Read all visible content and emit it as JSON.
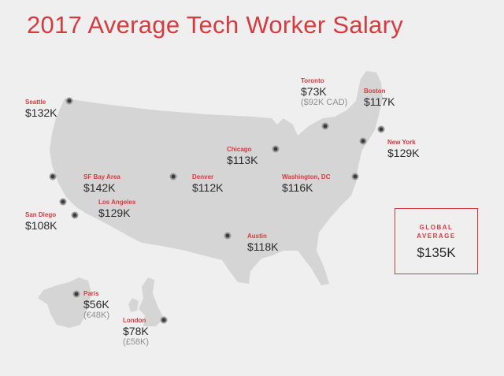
{
  "title": "2017 Average Tech Worker Salary",
  "colors": {
    "accent": "#d63b3f",
    "land": "#d5d5d5",
    "background": "#efefef"
  },
  "global": {
    "label": "GLOBAL AVERAGE",
    "value": "$135K"
  },
  "cities": [
    {
      "id": "seattle",
      "name": "Seattle",
      "salary": "$132K"
    },
    {
      "id": "sf-bay-area",
      "name": "SF Bay Area",
      "salary": "$142K"
    },
    {
      "id": "los-angeles",
      "name": "Los Angeles",
      "salary": "$129K"
    },
    {
      "id": "san-diego",
      "name": "San Diego",
      "salary": "$108K"
    },
    {
      "id": "denver",
      "name": "Denver",
      "salary": "$112K"
    },
    {
      "id": "chicago",
      "name": "Chicago",
      "salary": "$113K"
    },
    {
      "id": "toronto",
      "name": "Toronto",
      "salary": "$73K",
      "local": "($92K CAD)"
    },
    {
      "id": "boston",
      "name": "Boston",
      "salary": "$117K"
    },
    {
      "id": "new-york",
      "name": "New York",
      "salary": "$129K"
    },
    {
      "id": "washington-dc",
      "name": "Washington, DC",
      "salary": "$116K"
    },
    {
      "id": "austin",
      "name": "Austin",
      "salary": "$118K"
    },
    {
      "id": "paris",
      "name": "Paris",
      "salary": "$56K",
      "local": "(€48K)"
    },
    {
      "id": "london",
      "name": "London",
      "salary": "$78K",
      "local": "(£58K)"
    }
  ]
}
